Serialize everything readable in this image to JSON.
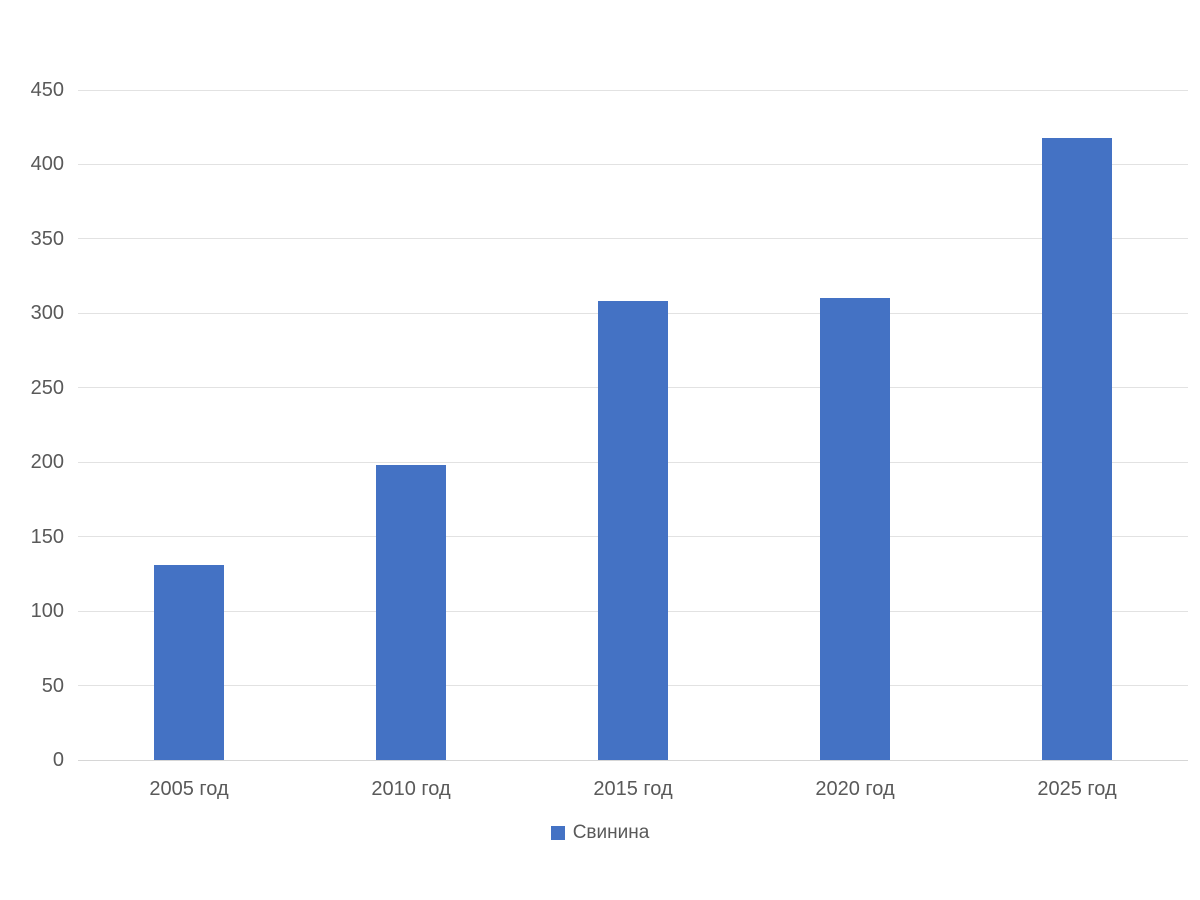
{
  "chart": {
    "bar_color": "#4472C4",
    "grid_color": "#E2E2E2",
    "axis_line_color": "#D6D6D6",
    "text_color": "#595959"
  },
  "chart_data": {
    "type": "bar",
    "title": "",
    "categories": [
      "2005 год",
      "2010 год",
      "2015 год",
      "2020 год",
      "2025 год"
    ],
    "series": [
      {
        "name": "Свинина",
        "values": [
          131,
          198,
          308,
          310,
          418
        ]
      }
    ],
    "ylim": [
      0,
      450
    ],
    "ytick_step": 50,
    "yticks": [
      0,
      50,
      100,
      150,
      200,
      250,
      300,
      350,
      400,
      450
    ],
    "grid": true,
    "legend_position": "bottom",
    "legend_marker": "square"
  }
}
